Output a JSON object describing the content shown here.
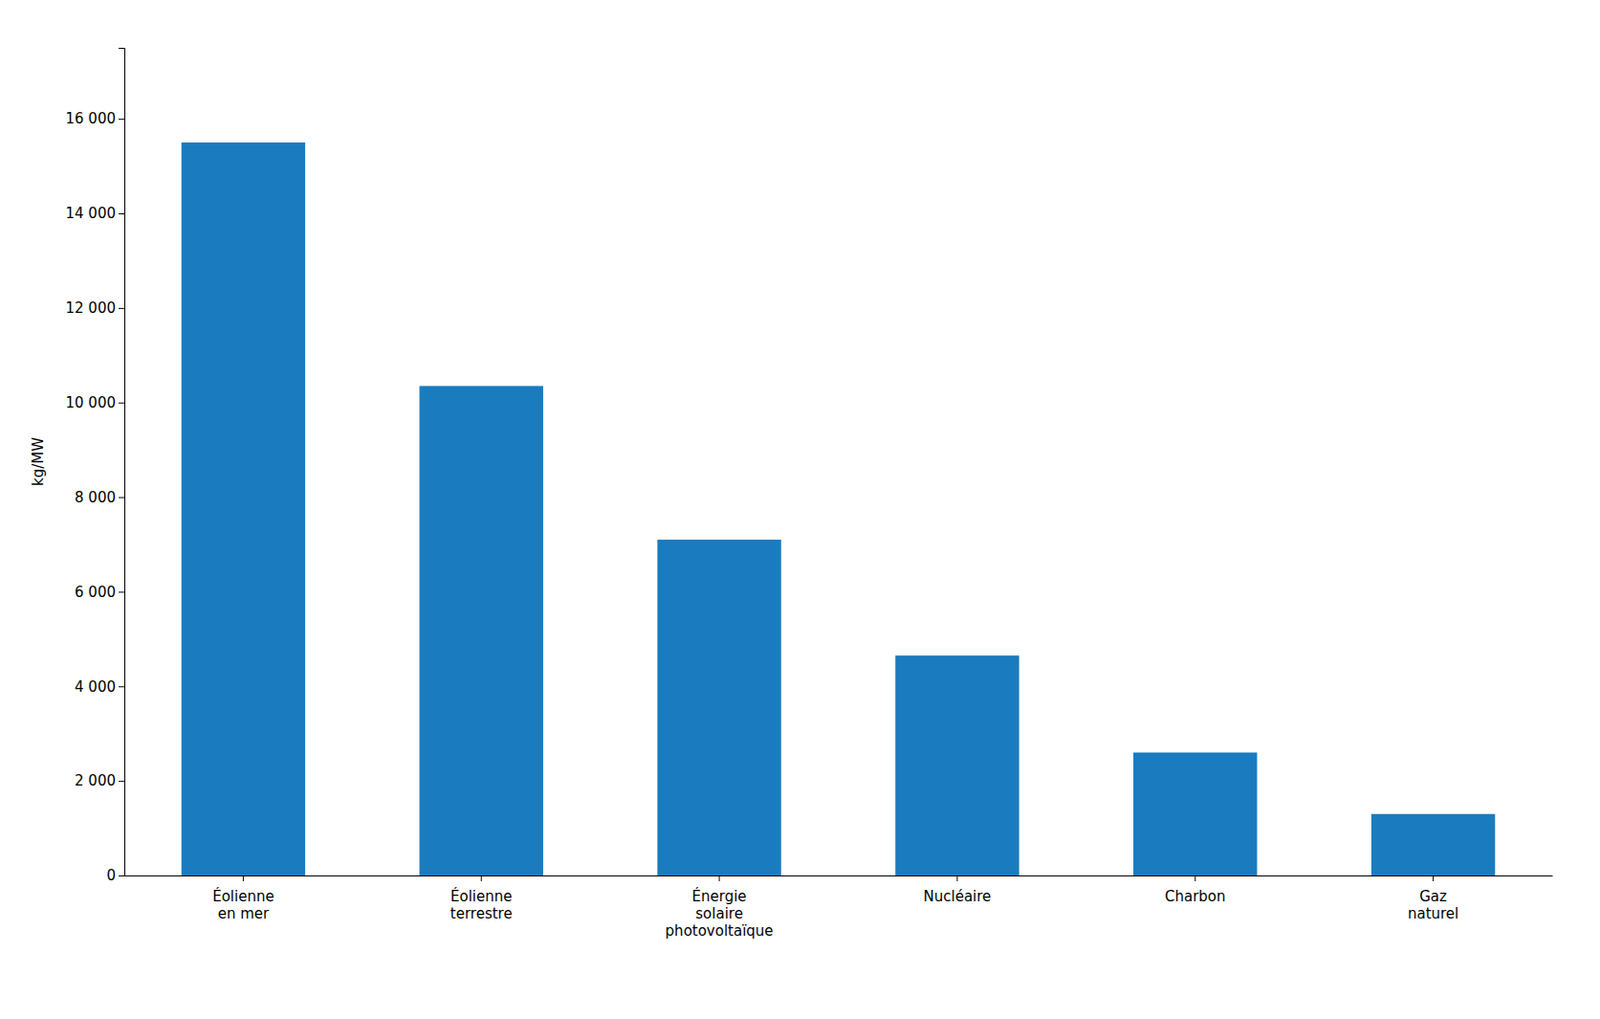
{
  "chart_data": {
    "type": "bar",
    "categories": [
      "Éolienne\nen mer",
      "Éolienne\nterrestre",
      "Énergie\nsolaire\nphotovoltaïque",
      "Nucléaire",
      "Charbon",
      "Gaz\nnaturel"
    ],
    "values": [
      15500,
      10350,
      7100,
      4650,
      2600,
      1300
    ],
    "color": "#1a7bbf",
    "ylabel": "kg/MW",
    "ylim": [
      0,
      17500
    ],
    "yticks": [
      0,
      {
        "value": 2000,
        "label": "2 000"
      },
      {
        "value": 4000,
        "label": "4 000"
      },
      {
        "value": 6000,
        "label": "6 000"
      },
      {
        "value": 8000,
        "label": "8 000"
      },
      {
        "value": 10000,
        "label": "10 000"
      },
      {
        "value": 12000,
        "label": "12 000"
      },
      {
        "value": 14000,
        "label": "14 000"
      },
      {
        "value": 16000,
        "label": "16 000"
      }
    ],
    "grid": false
  }
}
